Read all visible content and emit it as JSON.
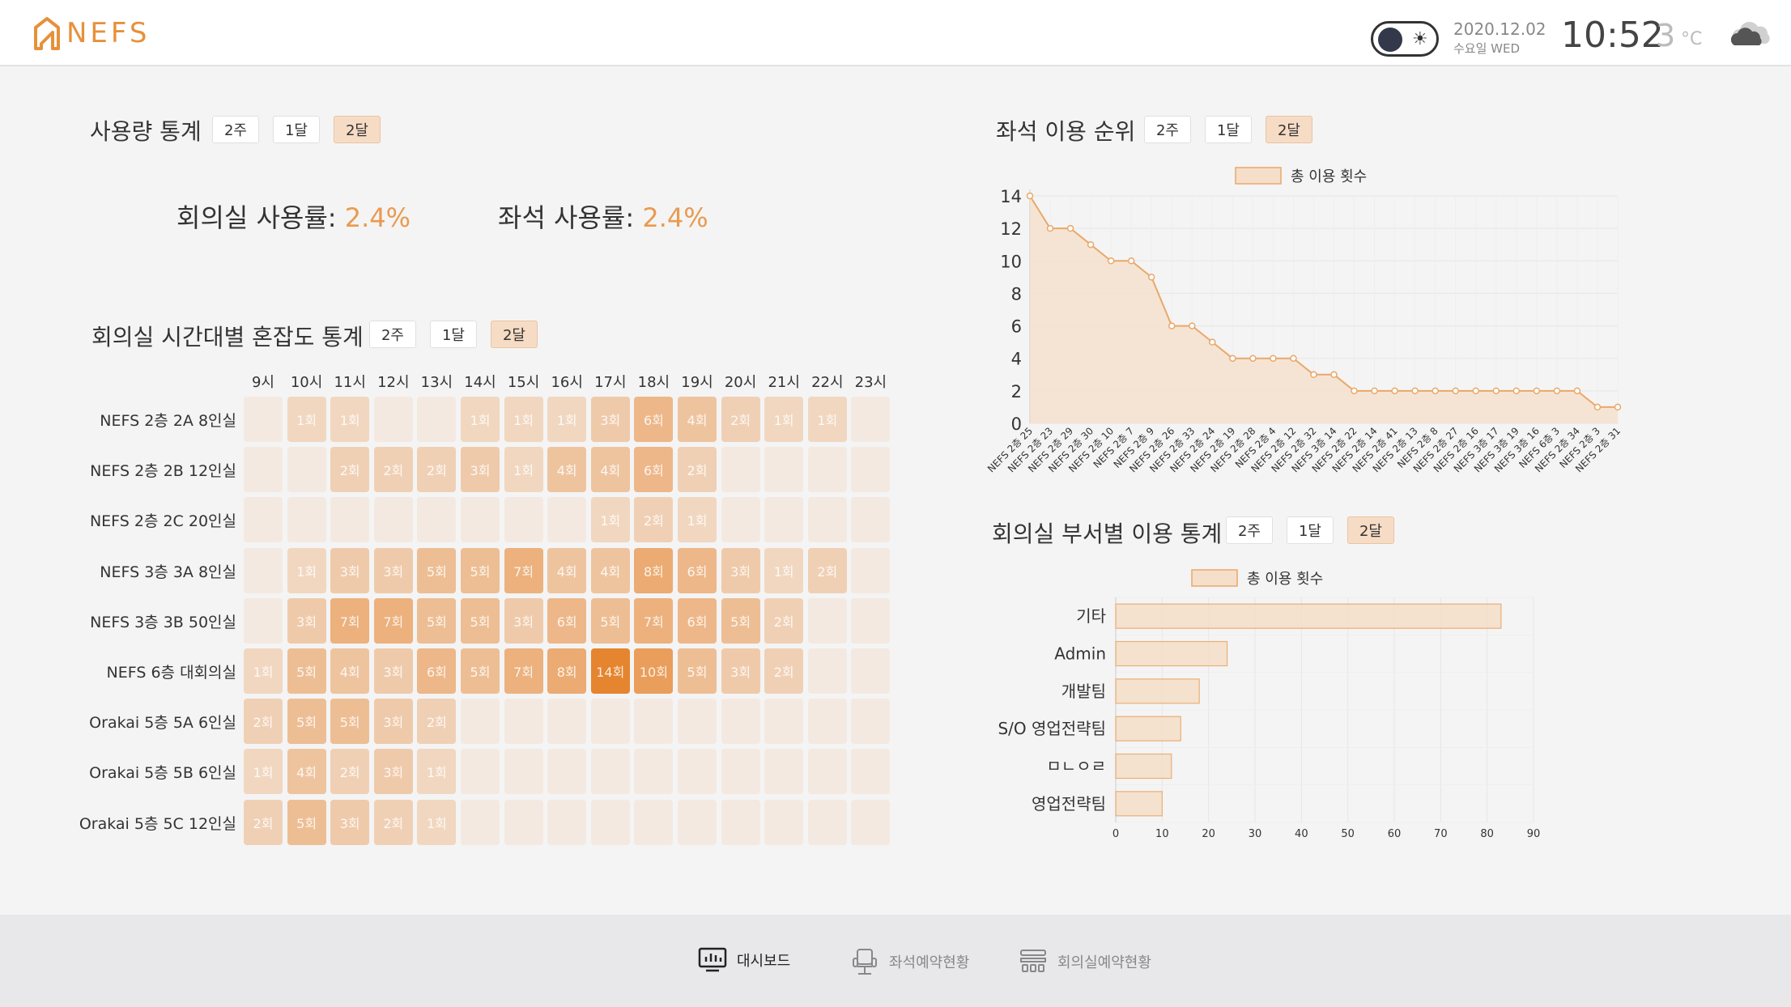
{
  "header": {
    "logo_text": "NEFS",
    "date": "2020.12.02",
    "weekday": "수요일 WED",
    "time": "10:52",
    "temperature": "3",
    "temp_unit": "°C",
    "weather_icon": "cloud-icon",
    "theme_toggle_icon": "sun-icon"
  },
  "periods": [
    "2주",
    "1달",
    "2달"
  ],
  "usage": {
    "title": "사용량 통계",
    "active": "2달",
    "meeting_label": "회의실 사용률:",
    "meeting_value": "2.4%",
    "seat_label": "좌석 사용률:",
    "seat_value": "2.4%"
  },
  "heatmap": {
    "title": "회의실 시간대별 혼잡도 통계",
    "active": "2달",
    "hours": [
      "9시",
      "10시",
      "11시",
      "12시",
      "13시",
      "14시",
      "15시",
      "16시",
      "17시",
      "18시",
      "19시",
      "20시",
      "21시",
      "22시",
      "23시"
    ],
    "rooms": [
      {
        "name": "NEFS 2층 2A 8인실",
        "values": [
          0,
          1,
          1,
          0,
          0,
          1,
          1,
          1,
          3,
          6,
          4,
          2,
          1,
          1,
          0
        ]
      },
      {
        "name": "NEFS 2층 2B 12인실",
        "values": [
          0,
          0,
          2,
          2,
          2,
          3,
          1,
          4,
          4,
          6,
          2,
          0,
          0,
          0,
          0
        ]
      },
      {
        "name": "NEFS 2층 2C 20인실",
        "values": [
          0,
          0,
          0,
          0,
          0,
          0,
          0,
          0,
          1,
          2,
          1,
          0,
          0,
          0,
          0
        ]
      },
      {
        "name": "NEFS 3층 3A 8인실",
        "values": [
          0,
          1,
          3,
          3,
          5,
          5,
          7,
          4,
          4,
          8,
          6,
          3,
          1,
          2,
          0
        ]
      },
      {
        "name": "NEFS 3층 3B 50인실",
        "values": [
          0,
          3,
          7,
          7,
          5,
          5,
          3,
          6,
          5,
          7,
          6,
          5,
          2,
          0,
          0
        ]
      },
      {
        "name": "NEFS 6층 대회의실",
        "values": [
          1,
          5,
          4,
          3,
          6,
          5,
          7,
          8,
          14,
          10,
          5,
          3,
          2,
          0,
          0
        ]
      },
      {
        "name": "Orakai 5층 5A 6인실",
        "values": [
          2,
          5,
          5,
          3,
          2,
          0,
          0,
          0,
          0,
          0,
          0,
          0,
          0,
          0,
          0
        ]
      },
      {
        "name": "Orakai 5층 5B 6인실",
        "values": [
          1,
          4,
          2,
          3,
          1,
          0,
          0,
          0,
          0,
          0,
          0,
          0,
          0,
          0,
          0
        ]
      },
      {
        "name": "Orakai 5층 5C 12인실",
        "values": [
          2,
          5,
          3,
          2,
          1,
          0,
          0,
          0,
          0,
          0,
          0,
          0,
          0,
          0,
          0
        ]
      }
    ],
    "unit": "회"
  },
  "seat_rank": {
    "title": "좌석 이용 순위",
    "active": "2달"
  },
  "dept": {
    "title": "회의실 부서별 이용 통계",
    "active": "2달"
  },
  "chart_data": [
    {
      "type": "area",
      "legend": "총 이용 횟수",
      "categories": [
        "NEFS 2층 25",
        "NEFS 2층 23",
        "NEFS 2층 29",
        "NEFS 2층 30",
        "NEFS 2층 10",
        "NEFS 2층 7",
        "NEFS 2층 9",
        "NEFS 2층 26",
        "NEFS 2층 33",
        "NEFS 2층 24",
        "NEFS 2층 19",
        "NEFS 2층 28",
        "NEFS 2층 4",
        "NEFS 2층 12",
        "NEFS 2층 32",
        "NEFS 3층 14",
        "NEFS 2층 22",
        "NEFS 2층 14",
        "NEFS 2층 41",
        "NEFS 2층 13",
        "NEFS 2층 8",
        "NEFS 2층 27",
        "NEFS 2층 16",
        "NEFS 3층 17",
        "NEFS 3층 19",
        "NEFS 3층 16",
        "NEFS 6층 3",
        "NEFS 2층 34",
        "NEFS 2층 3",
        "NEFS 2층 31"
      ],
      "values": [
        14,
        12,
        12,
        11,
        10,
        10,
        9,
        6,
        6,
        5,
        4,
        4,
        4,
        4,
        3,
        3,
        2,
        2,
        2,
        2,
        2,
        2,
        2,
        2,
        2,
        2,
        2,
        2,
        1,
        1
      ],
      "yticks": [
        "0",
        "2",
        "4",
        "6",
        "8",
        "10",
        "12",
        "14"
      ],
      "ylim": [
        0,
        14
      ]
    },
    {
      "type": "bar",
      "orientation": "horizontal",
      "legend": "총 이용 횟수",
      "categories": [
        "기타",
        "Admin",
        "개발팀",
        "S/O 영업전략팀",
        "ㅁㄴㅇㄹ",
        "영업전략팀"
      ],
      "values": [
        83,
        24,
        18,
        14,
        12,
        10
      ],
      "xticks": [
        "0",
        "10",
        "20",
        "30",
        "40",
        "50",
        "60",
        "70",
        "80",
        "90"
      ],
      "xlim": [
        0,
        90
      ]
    }
  ],
  "footer": {
    "items": [
      {
        "label": "대시보드",
        "icon": "monitor-chart-icon",
        "active": true
      },
      {
        "label": "좌석예약현황",
        "icon": "chair-icon",
        "active": false
      },
      {
        "label": "회의실예약현황",
        "icon": "meeting-room-icon",
        "active": false
      }
    ]
  },
  "colors": {
    "accent": "#ea9a4f",
    "cell_empty": "#f4e9e1",
    "cell_max": "#e5852f",
    "chart_fill": "#f5dfca",
    "chart_line": "#eaa869"
  }
}
